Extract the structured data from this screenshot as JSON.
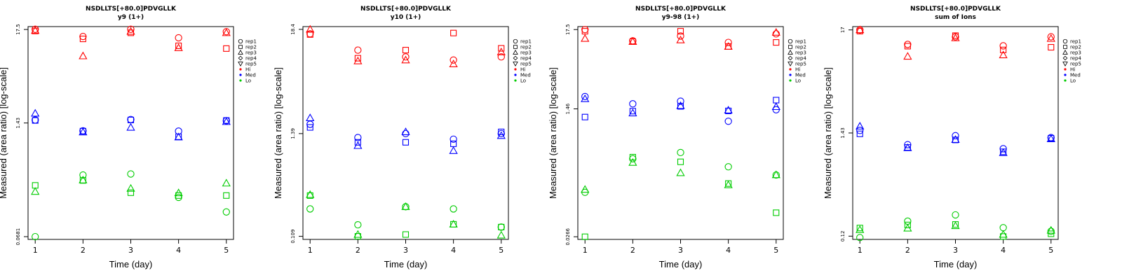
{
  "chart_data": [
    {
      "type": "scatter",
      "title": "NSDLLTS[+80.0]PDVGLLK",
      "subtitle": "y9 (1+)",
      "xlabel": "Time (day)",
      "ylabel": "Measured (area ratio) [log-scale]",
      "yscale": "log",
      "xlim": [
        0.85,
        5.15
      ],
      "ylim": [
        0.0633,
        18.9
      ],
      "xticks": [
        1,
        2,
        3,
        4,
        5
      ],
      "yticks": [
        0.0681,
        1.43,
        17.5
      ],
      "ytick_labels": [
        "0.0681",
        "1.43",
        "17.5"
      ],
      "series": [
        {
          "name": "Hi",
          "level": "Hi",
          "rep": "rep1",
          "x": [
            1,
            2,
            3,
            4,
            5
          ],
          "y": [
            17.6,
            14.5,
            17.6,
            14.0,
            16.5
          ]
        },
        {
          "name": "Hi",
          "level": "Hi",
          "rep": "rep2",
          "x": [
            1,
            2,
            3,
            4,
            5
          ],
          "y": [
            16.8,
            13.6,
            16.0,
            11.3,
            10.5
          ]
        },
        {
          "name": "Hi",
          "level": "Hi",
          "rep": "rep3",
          "x": [
            1,
            2,
            3,
            4,
            5
          ],
          "y": [
            17.0,
            8.6,
            16.6,
            10.7,
            16.0
          ]
        },
        {
          "name": "Med",
          "level": "Med",
          "rep": "rep1",
          "x": [
            1,
            2,
            3,
            4,
            5
          ],
          "y": [
            1.55,
            1.16,
            1.57,
            1.15,
            1.52
          ]
        },
        {
          "name": "Med",
          "level": "Med",
          "rep": "rep2",
          "x": [
            1,
            2,
            3,
            4,
            5
          ],
          "y": [
            1.53,
            1.15,
            1.55,
            0.99,
            1.53
          ]
        },
        {
          "name": "Med",
          "level": "Med",
          "rep": "rep3",
          "x": [
            1,
            2,
            3,
            4,
            5
          ],
          "y": [
            1.85,
            1.12,
            1.27,
            0.98,
            1.48
          ]
        },
        {
          "name": "Lo",
          "level": "Lo",
          "rep": "rep1",
          "x": [
            1,
            2,
            3,
            4,
            5
          ],
          "y": [
            0.0681,
            0.355,
            0.365,
            0.195,
            0.132
          ]
        },
        {
          "name": "Lo",
          "level": "Lo",
          "rep": "rep2",
          "x": [
            1,
            2,
            3,
            4,
            5
          ],
          "y": [
            0.269,
            0.307,
            0.221,
            0.205,
            0.205
          ]
        },
        {
          "name": "Lo",
          "level": "Lo",
          "rep": "rep3",
          "x": [
            1,
            2,
            3,
            4,
            5
          ],
          "y": [
            0.228,
            0.31,
            0.248,
            0.22,
            0.285
          ]
        }
      ]
    },
    {
      "type": "scatter",
      "title": "NSDLLTS[+80.0]PDVGLLK",
      "subtitle": "y10 (1+)",
      "xlabel": "Time (day)",
      "ylabel": "Measured (area ratio) [log-scale]",
      "yscale": "log",
      "xlim": [
        0.85,
        5.15
      ],
      "ylim": [
        0.101,
        19.7
      ],
      "xticks": [
        1,
        2,
        3,
        4,
        5
      ],
      "yticks": [
        0.109,
        1.39,
        18.4
      ],
      "ytick_labels": [
        "0.109",
        "1.39",
        "18.4"
      ],
      "series": [
        {
          "name": "Hi",
          "level": "Hi",
          "rep": "rep1",
          "x": [
            1,
            2,
            3,
            4,
            5
          ],
          "y": [
            16.5,
            11.0,
            9.3,
            8.6,
            9.3
          ]
        },
        {
          "name": "Hi",
          "level": "Hi",
          "rep": "rep2",
          "x": [
            1,
            2,
            3,
            4,
            5
          ],
          "y": [
            16.2,
            9.0,
            11.0,
            16.8,
            11.5
          ]
        },
        {
          "name": "Hi",
          "level": "Hi",
          "rep": "rep3",
          "x": [
            1,
            2,
            3,
            4,
            5
          ],
          "y": [
            18.4,
            8.4,
            8.6,
            7.8,
            10.5
          ]
        },
        {
          "name": "Med",
          "level": "Med",
          "rep": "rep1",
          "x": [
            1,
            2,
            3,
            4,
            5
          ],
          "y": [
            1.75,
            1.26,
            1.39,
            1.21,
            1.39
          ]
        },
        {
          "name": "Med",
          "level": "Med",
          "rep": "rep2",
          "x": [
            1,
            2,
            3,
            4,
            5
          ],
          "y": [
            1.62,
            1.12,
            1.12,
            1.08,
            1.45
          ]
        },
        {
          "name": "Med",
          "level": "Med",
          "rep": "rep3",
          "x": [
            1,
            2,
            3,
            4,
            5
          ],
          "y": [
            2.05,
            1.03,
            1.45,
            0.91,
            1.32
          ]
        },
        {
          "name": "Lo",
          "level": "Lo",
          "rep": "rep1",
          "x": [
            1,
            2,
            3,
            4,
            5
          ],
          "y": [
            0.215,
            0.145,
            0.227,
            0.215,
            0.137
          ]
        },
        {
          "name": "Lo",
          "level": "Lo",
          "rep": "rep2",
          "x": [
            1,
            2,
            3,
            4,
            5
          ],
          "y": [
            0.299,
            0.109,
            0.114,
            0.147,
            0.137
          ]
        },
        {
          "name": "Lo",
          "level": "Lo",
          "rep": "rep3",
          "x": [
            1,
            2,
            3,
            4,
            5
          ],
          "y": [
            0.306,
            0.114,
            0.227,
            0.147,
            0.112
          ]
        }
      ]
    },
    {
      "type": "scatter",
      "title": "NSDLLTS[+80.0]PDVGLLK",
      "subtitle": "y9-98 (1+)",
      "xlabel": "Time (day)",
      "ylabel": "Measured (area ratio) [log-scale]",
      "yscale": "log",
      "xlim": [
        0.85,
        5.15
      ],
      "ylim": [
        0.0245,
        19.2
      ],
      "xticks": [
        1,
        2,
        3,
        4,
        5
      ],
      "yticks": [
        0.0266,
        1.46,
        17.5
      ],
      "ytick_labels": [
        "0.0266",
        "1.46",
        "17.5"
      ],
      "series": [
        {
          "name": "Hi",
          "level": "Hi",
          "rep": "rep1",
          "x": [
            1,
            2,
            3,
            4,
            5
          ],
          "y": [
            17.5,
            12.3,
            14.3,
            11.7,
            15.3
          ]
        },
        {
          "name": "Hi",
          "level": "Hi",
          "rep": "rep2",
          "x": [
            1,
            2,
            3,
            4,
            5
          ],
          "y": [
            16.6,
            12.0,
            16.6,
            10.3,
            11.7
          ]
        },
        {
          "name": "Hi",
          "level": "Hi",
          "rep": "rep3",
          "x": [
            1,
            2,
            3,
            4,
            5
          ],
          "y": [
            13.2,
            12.0,
            12.6,
            10.3,
            16.0
          ]
        },
        {
          "name": "Med",
          "level": "Med",
          "rep": "rep1",
          "x": [
            1,
            2,
            3,
            4,
            5
          ],
          "y": [
            2.15,
            1.71,
            1.86,
            0.99,
            1.42
          ]
        },
        {
          "name": "Med",
          "level": "Med",
          "rep": "rep2",
          "x": [
            1,
            2,
            3,
            4,
            5
          ],
          "y": [
            1.13,
            1.36,
            1.58,
            1.37,
            1.92
          ]
        },
        {
          "name": "Med",
          "level": "Med",
          "rep": "rep3",
          "x": [
            1,
            2,
            3,
            4,
            5
          ],
          "y": [
            2.0,
            1.28,
            1.61,
            1.4,
            1.56
          ]
        },
        {
          "name": "Lo",
          "level": "Lo",
          "rep": "rep1",
          "x": [
            1,
            2,
            3,
            4,
            5
          ],
          "y": [
            0.107,
            0.306,
            0.372,
            0.238,
            0.184
          ]
        },
        {
          "name": "Lo",
          "level": "Lo",
          "rep": "rep2",
          "x": [
            1,
            2,
            3,
            4,
            5
          ],
          "y": [
            0.0266,
            0.322,
            0.278,
            0.141,
            0.0565
          ]
        },
        {
          "name": "Lo",
          "level": "Lo",
          "rep": "rep3",
          "x": [
            1,
            2,
            3,
            4,
            5
          ],
          "y": [
            0.117,
            0.272,
            0.197,
            0.135,
            0.185
          ]
        }
      ]
    },
    {
      "type": "scatter",
      "title": "NSDLLTS[+80.0]PDVGLLK",
      "subtitle": "sum of Ions",
      "xlabel": "Time (day)",
      "ylabel": "Measured (area ratio) [log-scale]",
      "yscale": "log",
      "xlim": [
        0.85,
        5.15
      ],
      "ylim": [
        0.111,
        18.4
      ],
      "xticks": [
        1,
        2,
        3,
        4,
        5
      ],
      "yticks": [
        0.12,
        1.43,
        17
      ],
      "ytick_labels": [
        "0.12",
        "1.43",
        "17"
      ],
      "series": [
        {
          "name": "Hi",
          "level": "Hi",
          "rep": "rep1",
          "x": [
            1,
            2,
            3,
            4,
            5
          ],
          "y": [
            17.0,
            12.0,
            14.4,
            11.6,
            14.4
          ]
        },
        {
          "name": "Hi",
          "level": "Hi",
          "rep": "rep2",
          "x": [
            1,
            2,
            3,
            4,
            5
          ],
          "y": [
            16.5,
            11.5,
            14.8,
            10.5,
            11.2
          ]
        },
        {
          "name": "Hi",
          "level": "Hi",
          "rep": "rep3",
          "x": [
            1,
            2,
            3,
            4,
            5
          ],
          "y": [
            17.0,
            9.0,
            14.0,
            9.3,
            13.8
          ]
        },
        {
          "name": "Med",
          "level": "Med",
          "rep": "rep1",
          "x": [
            1,
            2,
            3,
            4,
            5
          ],
          "y": [
            1.52,
            1.08,
            1.34,
            0.98,
            1.28
          ]
        },
        {
          "name": "Med",
          "level": "Med",
          "rep": "rep2",
          "x": [
            1,
            2,
            3,
            4,
            5
          ],
          "y": [
            1.4,
            1.01,
            1.21,
            0.91,
            1.26
          ]
        },
        {
          "name": "Med",
          "level": "Med",
          "rep": "rep3",
          "x": [
            1,
            2,
            3,
            4,
            5
          ],
          "y": [
            1.68,
            1.0,
            1.22,
            0.89,
            1.24
          ]
        },
        {
          "name": "Lo",
          "level": "Lo",
          "rep": "rep1",
          "x": [
            1,
            2,
            3,
            4,
            5
          ],
          "y": [
            0.116,
            0.172,
            0.2,
            0.147,
            0.135
          ]
        },
        {
          "name": "Lo",
          "level": "Lo",
          "rep": "rep2",
          "x": [
            1,
            2,
            3,
            4,
            5
          ],
          "y": [
            0.146,
            0.157,
            0.159,
            0.119,
            0.127
          ]
        },
        {
          "name": "Lo",
          "level": "Lo",
          "rep": "rep3",
          "x": [
            1,
            2,
            3,
            4,
            5
          ],
          "y": [
            0.14,
            0.145,
            0.154,
            0.125,
            0.138
          ]
        }
      ]
    }
  ],
  "legend": {
    "reps": [
      {
        "label": "rep1",
        "shape": "circle"
      },
      {
        "label": "rep2",
        "shape": "square"
      },
      {
        "label": "rep3",
        "shape": "triangle-up"
      },
      {
        "label": "rep4",
        "shape": "diamond"
      },
      {
        "label": "rep5",
        "shape": "triangle-down"
      }
    ],
    "levels": [
      {
        "label": "Hi",
        "color": "#ff0000"
      },
      {
        "label": "Med",
        "color": "#0000ff"
      },
      {
        "label": "Lo",
        "color": "#00cc00"
      }
    ]
  }
}
